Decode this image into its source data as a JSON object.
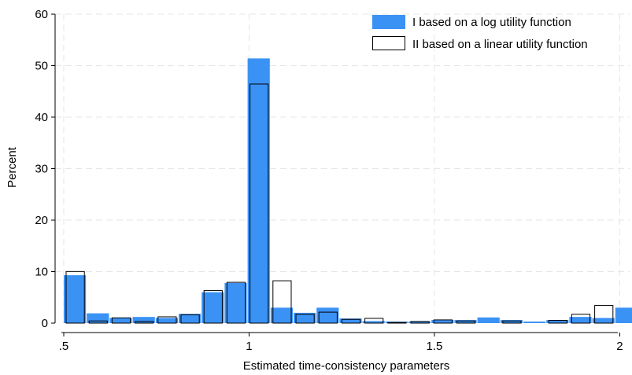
{
  "chart_data": {
    "type": "bar",
    "xlabel": "Estimated time-consistency parameters",
    "ylabel": "Percent",
    "xlim": [
      0.5,
      2.05
    ],
    "ylim": [
      0,
      60
    ],
    "xticks": [
      0.5,
      1,
      1.5,
      2
    ],
    "xtick_labels": [
      ".5",
      "1",
      "1.5",
      "2"
    ],
    "yticks": [
      0,
      10,
      20,
      30,
      40,
      50,
      60
    ],
    "ytick_labels": [
      "0",
      "10",
      "20",
      "30",
      "40",
      "50",
      "60"
    ],
    "grid": true,
    "legend_position": "top-right",
    "colors": {
      "series1": "#3b92f5",
      "series2_outline": "#000000"
    },
    "series": [
      {
        "name": "I based on a log utility function",
        "style": "filled",
        "bins": [
          {
            "x0": 0.5,
            "x1": 0.562,
            "value": 9.3
          },
          {
            "x0": 0.562,
            "x1": 0.624,
            "value": 1.9
          },
          {
            "x0": 0.624,
            "x1": 0.686,
            "value": 1.0
          },
          {
            "x0": 0.686,
            "x1": 0.748,
            "value": 1.2
          },
          {
            "x0": 0.748,
            "x1": 0.81,
            "value": 1.0
          },
          {
            "x0": 0.81,
            "x1": 0.872,
            "value": 1.8
          },
          {
            "x0": 0.872,
            "x1": 0.934,
            "value": 6.0
          },
          {
            "x0": 0.934,
            "x1": 0.996,
            "value": 7.8
          },
          {
            "x0": 0.996,
            "x1": 1.058,
            "value": 51.4
          },
          {
            "x0": 1.058,
            "x1": 1.12,
            "value": 3.0
          },
          {
            "x0": 1.12,
            "x1": 1.182,
            "value": 2.0
          },
          {
            "x0": 1.182,
            "x1": 1.244,
            "value": 3.0
          },
          {
            "x0": 1.244,
            "x1": 1.306,
            "value": 0.9
          },
          {
            "x0": 1.306,
            "x1": 1.368,
            "value": 0.4
          },
          {
            "x0": 1.368,
            "x1": 1.43,
            "value": 0.3
          },
          {
            "x0": 1.43,
            "x1": 1.492,
            "value": 0.3
          },
          {
            "x0": 1.492,
            "x1": 1.554,
            "value": 0.6
          },
          {
            "x0": 1.554,
            "x1": 1.616,
            "value": 0.6
          },
          {
            "x0": 1.616,
            "x1": 1.678,
            "value": 1.1
          },
          {
            "x0": 1.678,
            "x1": 1.74,
            "value": 0.6
          },
          {
            "x0": 1.74,
            "x1": 1.802,
            "value": 0.3
          },
          {
            "x0": 1.802,
            "x1": 1.864,
            "value": 0.6
          },
          {
            "x0": 1.864,
            "x1": 1.926,
            "value": 1.2
          },
          {
            "x0": 1.926,
            "x1": 1.988,
            "value": 1.0
          },
          {
            "x0": 1.988,
            "x1": 2.05,
            "value": 3.0
          }
        ]
      },
      {
        "name": "II based on a linear utility function",
        "style": "outline",
        "bins": [
          {
            "x0": 0.5,
            "x1": 0.562,
            "value": 10.1
          },
          {
            "x0": 0.562,
            "x1": 0.624,
            "value": 0.5
          },
          {
            "x0": 0.624,
            "x1": 0.686,
            "value": 1.1
          },
          {
            "x0": 0.686,
            "x1": 0.748,
            "value": 0.4
          },
          {
            "x0": 0.748,
            "x1": 0.81,
            "value": 1.3
          },
          {
            "x0": 0.81,
            "x1": 0.872,
            "value": 1.7
          },
          {
            "x0": 0.872,
            "x1": 0.934,
            "value": 6.4
          },
          {
            "x0": 0.934,
            "x1": 0.996,
            "value": 8.0
          },
          {
            "x0": 0.996,
            "x1": 1.058,
            "value": 46.5
          },
          {
            "x0": 1.058,
            "x1": 1.12,
            "value": 8.3
          },
          {
            "x0": 1.12,
            "x1": 1.182,
            "value": 1.8
          },
          {
            "x0": 1.182,
            "x1": 1.244,
            "value": 2.2
          },
          {
            "x0": 1.244,
            "x1": 1.306,
            "value": 0.8
          },
          {
            "x0": 1.306,
            "x1": 1.368,
            "value": 1.0
          },
          {
            "x0": 1.368,
            "x1": 1.43,
            "value": 0.2
          },
          {
            "x0": 1.43,
            "x1": 1.492,
            "value": 0.4
          },
          {
            "x0": 1.492,
            "x1": 1.554,
            "value": 0.7
          },
          {
            "x0": 1.554,
            "x1": 1.616,
            "value": 0.5
          },
          {
            "x0": 1.616,
            "x1": 1.678,
            "value": 0.0
          },
          {
            "x0": 1.678,
            "x1": 1.74,
            "value": 0.5
          },
          {
            "x0": 1.74,
            "x1": 1.802,
            "value": 0.0
          },
          {
            "x0": 1.802,
            "x1": 1.864,
            "value": 0.6
          },
          {
            "x0": 1.864,
            "x1": 1.926,
            "value": 1.8
          },
          {
            "x0": 1.926,
            "x1": 1.988,
            "value": 3.5
          },
          {
            "x0": 1.988,
            "x1": 2.05,
            "value": 0.0
          }
        ]
      }
    ]
  }
}
